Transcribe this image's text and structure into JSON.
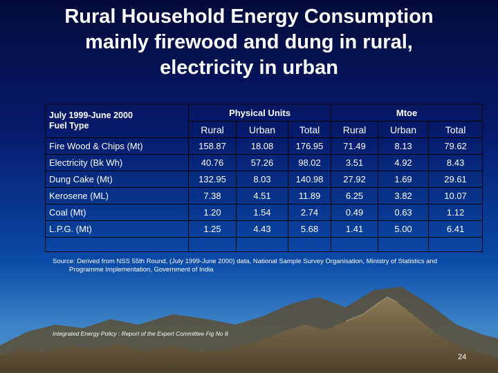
{
  "slide": {
    "title_lines": [
      "Rural Household Energy Consumption",
      "mainly firewood and dung in rural,",
      "electricity in urban"
    ],
    "page_number": "24"
  },
  "table": {
    "corner_label_line1": "July 1999-June 2000",
    "corner_label_line2": "Fuel Type",
    "group_headers": [
      "Physical Units",
      "Mtoe"
    ],
    "sub_headers": [
      "Rural",
      "Urban",
      "Total",
      "Rural",
      "Urban",
      "Total"
    ],
    "rows": [
      {
        "fuel": "Fire Wood & Chips (Mt)",
        "values": [
          "158.87",
          "18.08",
          "176.95",
          "71.49",
          "8.13",
          "79.62"
        ]
      },
      {
        "fuel": "Electricity (Bk Wh)",
        "values": [
          "40.76",
          "57.26",
          "98.02",
          "3.51",
          "4.92",
          "8.43"
        ]
      },
      {
        "fuel": "Dung Cake (Mt)",
        "values": [
          "132.95",
          "8.03",
          "140.98",
          "27.92",
          "1.69",
          "29.61"
        ]
      },
      {
        "fuel": "Kerosene (ML)",
        "values": [
          "7.38",
          "4.51",
          "11.89",
          "6.25",
          "3.82",
          "10.07"
        ]
      },
      {
        "fuel": "Coal (Mt)",
        "values": [
          "1.20",
          "1.54",
          "2.74",
          "0.49",
          "0.63",
          "1.12"
        ]
      },
      {
        "fuel": "L.P.G. (Mt)",
        "values": [
          "1.25",
          "4.43",
          "5.68",
          "1.41",
          "5.00",
          "6.41"
        ]
      }
    ]
  },
  "source": {
    "line1": "Source: Derived from NSS 55th Round, (July 1999-June 2000) data, National Sample Survey Organisation, Ministry of Statistics and",
    "line2": "Programme Implementation, Government of India"
  },
  "reference": "Integrated Energy Policy : Report of the Expert Committee Fig No 8",
  "colors": {
    "text": "#ffffff",
    "background_top": "#030b3a",
    "background_bottom": "#4d8fcc",
    "mountain_base": "#6b5a3c",
    "table_border": "#000000"
  }
}
